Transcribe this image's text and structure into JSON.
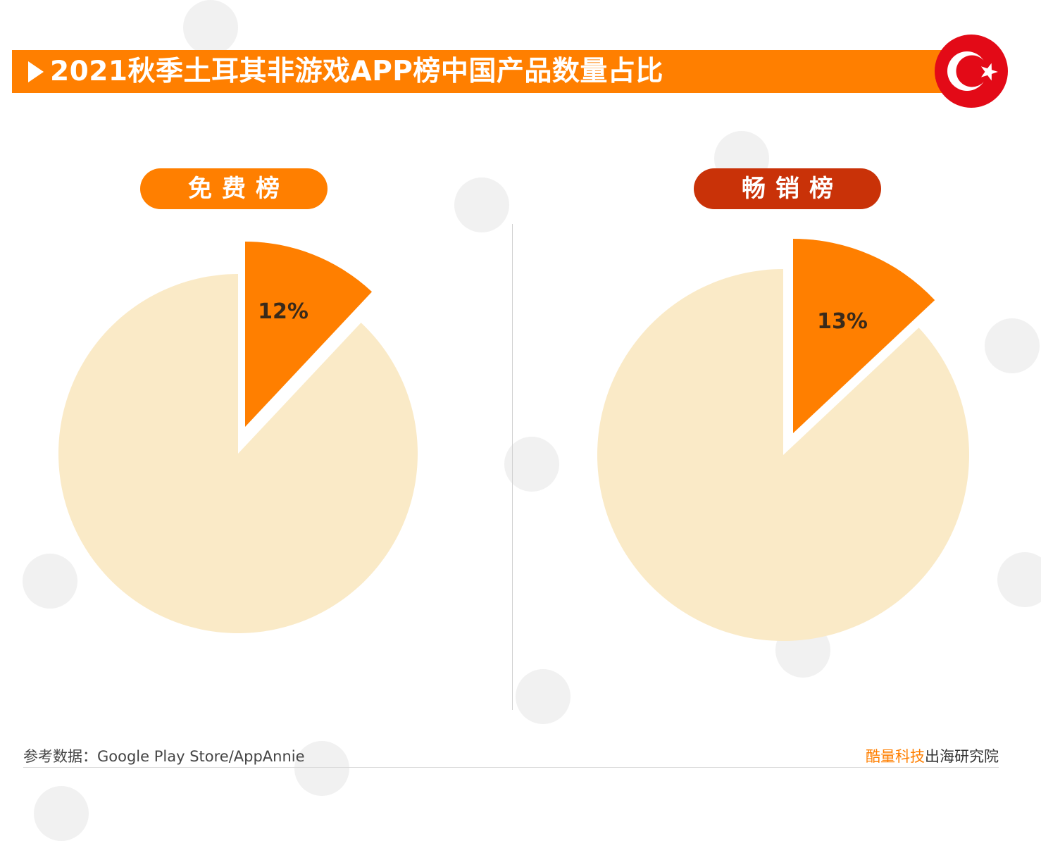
{
  "title": "2021秋季土耳其非游戏APP榜中国产品数量占比",
  "flag": {
    "name": "turkey-flag-icon",
    "color": "#e30a17"
  },
  "colors": {
    "accent": "#ff7f00",
    "highlight_dark": "#c93208",
    "pie_rest": "#faeac7",
    "label_text": "#3a2a1a"
  },
  "charts": [
    {
      "label": "免费榜",
      "pill_color": "#ff7f00"
    },
    {
      "label": "畅销榜",
      "pill_color": "#c93208"
    }
  ],
  "chart_data": [
    {
      "type": "pie",
      "title": "免费榜",
      "slices": [
        {
          "label": "12%",
          "value": 12,
          "color": "#ff7f00",
          "exploded": true
        },
        {
          "label": "",
          "value": 88,
          "color": "#faeac7",
          "exploded": false
        }
      ]
    },
    {
      "type": "pie",
      "title": "畅销榜",
      "slices": [
        {
          "label": "13%",
          "value": 13,
          "color": "#ff7f00",
          "exploded": true
        },
        {
          "label": "",
          "value": 87,
          "color": "#faeac7",
          "exploded": false
        }
      ]
    }
  ],
  "footer": {
    "source": "参考数据：Google Play Store/AppAnnie",
    "brand_accent": "酷量科技",
    "brand_rest": "出海研究院"
  }
}
